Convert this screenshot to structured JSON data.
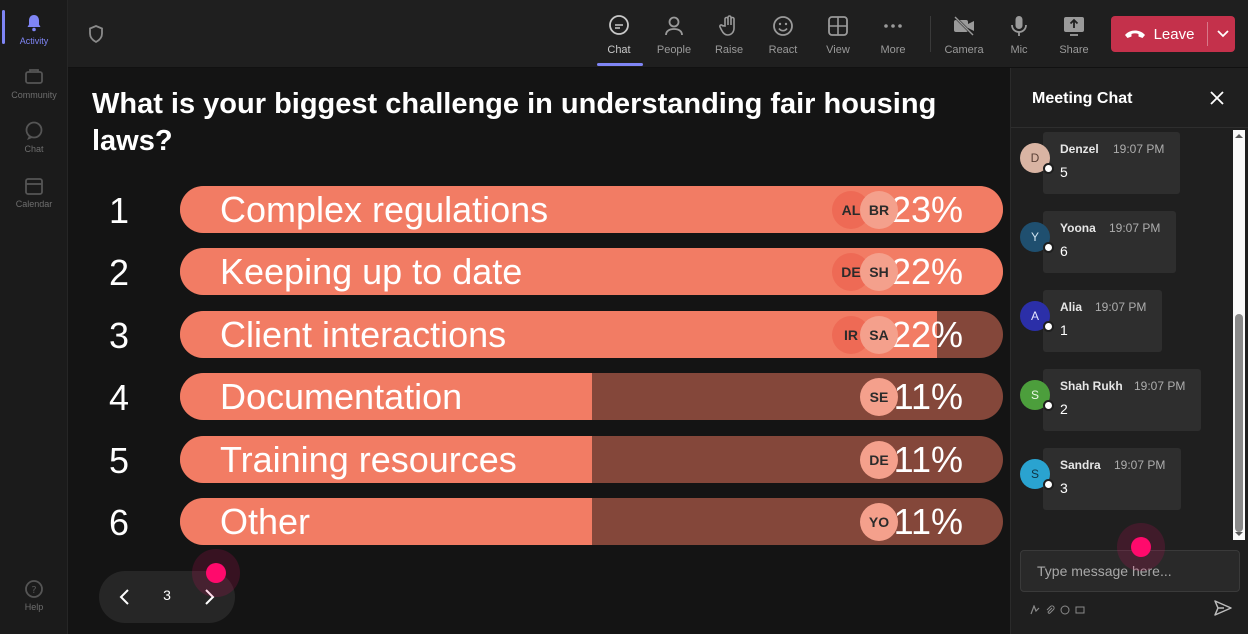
{
  "rail": {
    "items": [
      {
        "label": "Activity",
        "icon": "bell-icon",
        "active": true
      },
      {
        "label": "Community",
        "icon": "community-icon"
      },
      {
        "label": "Chat",
        "icon": "chat-icon"
      },
      {
        "label": "Calendar",
        "icon": "calendar-icon"
      },
      {
        "label": "Help",
        "icon": "help-icon"
      }
    ]
  },
  "toolbar": {
    "chat": "Chat",
    "people": "People",
    "raise": "Raise",
    "react": "React",
    "view": "View",
    "more": "More",
    "camera": "Camera",
    "mic": "Mic",
    "share": "Share",
    "leave": "Leave"
  },
  "poll": {
    "question": "What is your biggest challenge in understanding fair housing laws?",
    "options": [
      {
        "num": "1",
        "label": "Complex regulations",
        "percent": "23%",
        "fill": 1.0,
        "voters": [
          "AL",
          "BR"
        ]
      },
      {
        "num": "2",
        "label": "Keeping up to date",
        "percent": "22%",
        "fill": 1.0,
        "voters": [
          "DE",
          "SH"
        ]
      },
      {
        "num": "3",
        "label": "Client interactions",
        "percent": "22%",
        "fill": 0.92,
        "voters": [
          "IR",
          "SA"
        ]
      },
      {
        "num": "4",
        "label": "Documentation",
        "percent": "11%",
        "fill": 0.5,
        "voters": [
          "SE"
        ]
      },
      {
        "num": "5",
        "label": "Training resources",
        "percent": "11%",
        "fill": 0.5,
        "voters": [
          "DE"
        ]
      },
      {
        "num": "6",
        "label": "Other",
        "percent": "11%",
        "fill": 0.5,
        "voters": [
          "YO"
        ]
      }
    ],
    "page": "3",
    "colors": {
      "fill": "#f27c64",
      "track": "#84473a",
      "avatar_front": "#f4a08c",
      "avatar_back": "#ee6a55"
    }
  },
  "chat": {
    "title": "Meeting Chat",
    "messages": [
      {
        "initial": "D",
        "name": "Denzel",
        "time": "19:07 PM",
        "text": "5",
        "color": "#d9b4a3",
        "initial_color": "#5a4036"
      },
      {
        "initial": "Y",
        "name": "Yoona",
        "time": "19:07 PM",
        "text": "6",
        "color": "#1f4f6f",
        "initial_color": "#cfe3f0"
      },
      {
        "initial": "A",
        "name": "Alia",
        "time": "19:07 PM",
        "text": "1",
        "color": "#2b2fa8",
        "initial_color": "#e5e6ff"
      },
      {
        "initial": "S",
        "name": "Shah Rukh",
        "time": "19:07 PM",
        "text": "2",
        "color": "#4c9e3c",
        "initial_color": "#e9f7e5"
      },
      {
        "initial": "S",
        "name": "Sandra",
        "time": "19:07 PM",
        "text": "3",
        "color": "#2aa3d0",
        "initial_color": "#0f3344"
      }
    ],
    "compose_placeholder": "Type message here..."
  }
}
